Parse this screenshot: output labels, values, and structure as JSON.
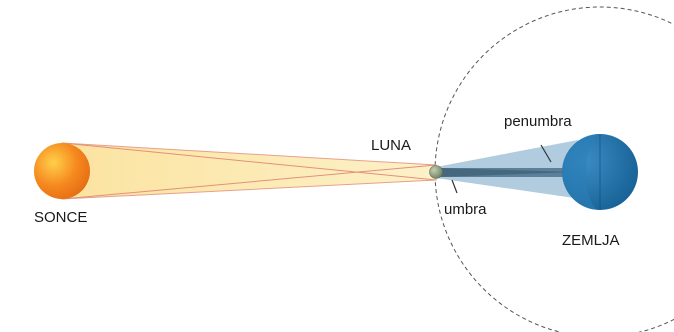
{
  "labels": {
    "sun": "SONCE",
    "moon": "LUNA",
    "earth": "ZEMLJA",
    "penumbra": "penumbra",
    "umbra": "umbra"
  },
  "colors": {
    "sun_light": "#fbe9a6",
    "sun_edge": "#e0805a",
    "sun_core": "#f6891f",
    "moon": "#8a9a7a",
    "penumbra_shadow": "#a9c6dc",
    "umbra_shadow": "#5c7f9a",
    "earth": "#1f6fa5",
    "orbit": "#555555"
  }
}
